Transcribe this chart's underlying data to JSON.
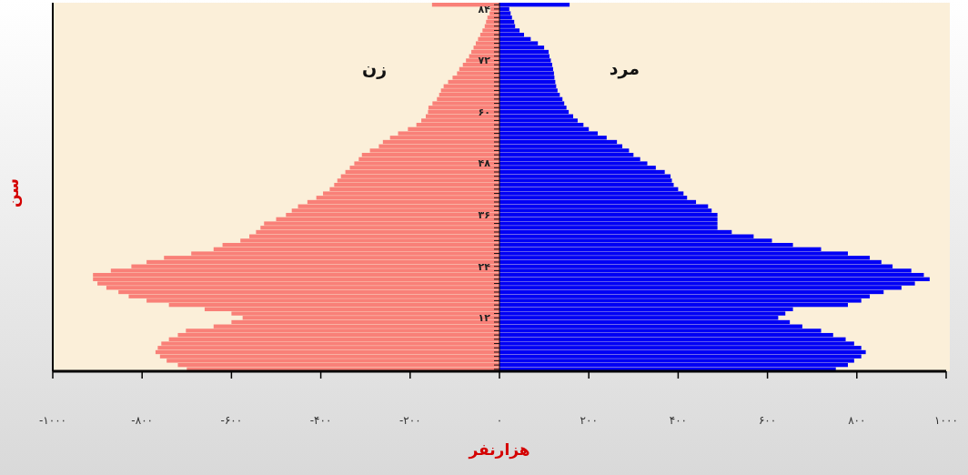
{
  "chart_data": {
    "type": "bar",
    "orientation": "horizontal",
    "stacked": true,
    "ylabel": "سن",
    "xlabel": "هزارنفر",
    "categories": [
      null,
      "۸۴",
      null,
      null,
      null,
      null,
      null,
      null,
      null,
      null,
      null,
      null,
      null,
      "۷۲",
      null,
      null,
      null,
      null,
      null,
      null,
      null,
      null,
      null,
      null,
      null,
      "۶۰",
      null,
      null,
      null,
      null,
      null,
      null,
      null,
      null,
      null,
      null,
      null,
      "۴۸",
      null,
      null,
      null,
      null,
      null,
      null,
      null,
      null,
      null,
      null,
      null,
      "۳۶",
      null,
      null,
      null,
      null,
      null,
      null,
      null,
      null,
      null,
      null,
      null,
      "۲۴",
      null,
      null,
      null,
      null,
      null,
      null,
      null,
      null,
      null,
      null,
      null,
      "۱۲",
      null,
      null,
      null,
      null,
      null,
      null,
      null,
      null,
      null,
      null,
      null,
      null
    ],
    "series": [
      {
        "name": "زن",
        "color": "#f98078",
        "values": [
          -151,
          -20,
          -22,
          -27,
          -30,
          -33,
          -38,
          -43,
          -48,
          -53,
          -58,
          -63,
          -68,
          -75,
          -82,
          -90,
          -95,
          -105,
          -115,
          -125,
          -131,
          -135,
          -140,
          -150,
          -159,
          -160,
          -165,
          -175,
          -186,
          -205,
          -227,
          -245,
          -261,
          -270,
          -290,
          -308,
          -315,
          -325,
          -335,
          -345,
          -355,
          -363,
          -370,
          -380,
          -395,
          -410,
          -430,
          -451,
          -465,
          -478,
          -500,
          -527,
          -535,
          -545,
          -560,
          -580,
          -620,
          -640,
          -690,
          -751,
          -790,
          -824,
          -870,
          -910,
          -910,
          -900,
          -880,
          -853,
          -830,
          -790,
          -740,
          -660,
          -600,
          -575,
          -600,
          -640,
          -702,
          -720,
          -740,
          -757,
          -765,
          -770,
          -760,
          -745,
          -720,
          -700
        ]
      },
      {
        "name": "مرد",
        "color": "#0000f5",
        "values": [
          157,
          22,
          25,
          28,
          33,
          35,
          45,
          55,
          70,
          86,
          100,
          110,
          112,
          115,
          118,
          120,
          122,
          123,
          125,
          127,
          130,
          135,
          141,
          145,
          150,
          155,
          165,
          175,
          188,
          200,
          220,
          240,
          263,
          275,
          290,
          300,
          315,
          331,
          350,
          370,
          383,
          386,
          390,
          400,
          412,
          420,
          440,
          467,
          475,
          488,
          488,
          488,
          488,
          520,
          569,
          610,
          657,
          720,
          780,
          829,
          855,
          880,
          922,
          950,
          963,
          930,
          900,
          860,
          829,
          810,
          780,
          657,
          640,
          624,
          650,
          678,
          720,
          747,
          775,
          794,
          810,
          820,
          810,
          794,
          780,
          753
        ]
      }
    ],
    "xlim": [
      -1000,
      1000
    ],
    "xticks": [
      {
        "value": -1000,
        "label": "-۱۰۰۰"
      },
      {
        "value": -800,
        "label": "-۸۰۰"
      },
      {
        "value": -600,
        "label": "-۶۰۰"
      },
      {
        "value": -400,
        "label": "-۴۰۰"
      },
      {
        "value": -200,
        "label": "-۲۰۰"
      },
      {
        "value": 0,
        "label": "۰"
      },
      {
        "value": 200,
        "label": "۲۰۰"
      },
      {
        "value": 400,
        "label": "۴۰۰"
      },
      {
        "value": 600,
        "label": "۶۰۰"
      },
      {
        "value": 800,
        "label": "۸۰۰"
      },
      {
        "value": 1000,
        "label": "۱۰۰۰"
      }
    ],
    "legend": false
  }
}
